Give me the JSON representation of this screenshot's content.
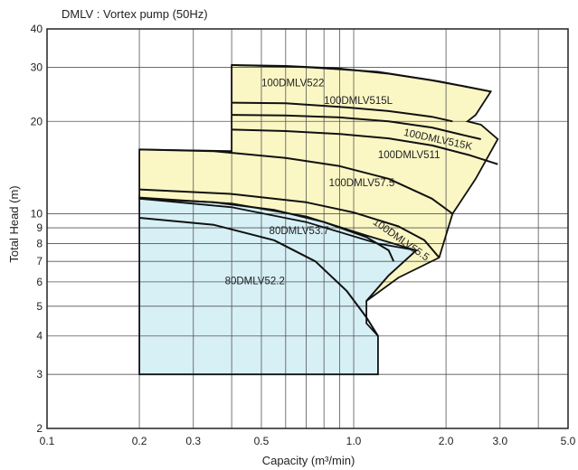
{
  "chart_data": {
    "type": "line",
    "title": "DMLV : Vortex pump (50Hz)",
    "xlabel": "Capacity (m³/min)",
    "ylabel": "Total Head (m)",
    "x_scale": "log",
    "y_scale": "log",
    "xlim": [
      0.1,
      5.0
    ],
    "ylim": [
      2,
      40
    ],
    "x_ticks": [
      {
        "value": 0.1,
        "label": "0.1"
      },
      {
        "value": 0.2,
        "label": "0.2"
      },
      {
        "value": 0.3,
        "label": "0.3"
      },
      {
        "value": 0.5,
        "label": "0.5"
      },
      {
        "value": 1.0,
        "label": "1.0"
      },
      {
        "value": 2.0,
        "label": "2.0"
      },
      {
        "value": 3.0,
        "label": "3.0"
      },
      {
        "value": 5.0,
        "label": "5.0"
      }
    ],
    "y_ticks": [
      {
        "value": 2,
        "label": "2"
      },
      {
        "value": 3,
        "label": "3"
      },
      {
        "value": 4,
        "label": "4"
      },
      {
        "value": 5,
        "label": "5"
      },
      {
        "value": 6,
        "label": "6"
      },
      {
        "value": 7,
        "label": "7"
      },
      {
        "value": 8,
        "label": "8"
      },
      {
        "value": 9,
        "label": "9"
      },
      {
        "value": 10,
        "label": "10"
      },
      {
        "value": 20,
        "label": "20"
      },
      {
        "value": 30,
        "label": "30"
      },
      {
        "value": 40,
        "label": "40"
      }
    ],
    "grid": true,
    "colors": {
      "zone_100": "#fbf7c4",
      "zone_80": "#d6f0f6",
      "curve": "#111111"
    },
    "zones": [
      {
        "group": "100",
        "color": "#fbf7c4",
        "polygon": [
          [
            0.4,
            30.5
          ],
          [
            0.7,
            30
          ],
          [
            1.2,
            29
          ],
          [
            1.9,
            27
          ],
          [
            2.8,
            25
          ],
          [
            2.5,
            21
          ],
          [
            2.35,
            20
          ],
          [
            2.6,
            19.5
          ],
          [
            2.95,
            17.5
          ],
          [
            2.5,
            13
          ],
          [
            2.1,
            10
          ],
          [
            1.9,
            7.2
          ],
          [
            1.4,
            6.2
          ],
          [
            1.1,
            5.2
          ],
          [
            1.3,
            6.3
          ],
          [
            1.6,
            7.6
          ],
          [
            1.2,
            8
          ],
          [
            0.7,
            9.4
          ],
          [
            0.4,
            10.5
          ],
          [
            0.2,
            11.2
          ],
          [
            0.2,
            16.2
          ],
          [
            0.4,
            16
          ],
          [
            0.4,
            30.5
          ]
        ]
      },
      {
        "group": "80",
        "color": "#d6f0f6",
        "polygon": [
          [
            0.2,
            11.3
          ],
          [
            0.4,
            10.8
          ],
          [
            0.7,
            9.8
          ],
          [
            1.1,
            8.5
          ],
          [
            1.6,
            7.6
          ],
          [
            1.3,
            6.3
          ],
          [
            1.1,
            5.2
          ],
          [
            1.1,
            4.4
          ],
          [
            1.2,
            4.0
          ],
          [
            1.2,
            3.0
          ],
          [
            0.2,
            3.0
          ],
          [
            0.2,
            11.3
          ]
        ]
      }
    ],
    "series": [
      {
        "name": "100DMLV522",
        "x": [
          0.4,
          0.6,
          0.9,
          1.3,
          1.8,
          2.3,
          2.8
        ],
        "y": [
          30.5,
          30.3,
          29.7,
          28.6,
          27.2,
          26.0,
          25.0
        ]
      },
      {
        "name": "100DMLV515L",
        "x": [
          0.4,
          0.6,
          0.9,
          1.3,
          1.8,
          2.1
        ],
        "y": [
          23.0,
          22.9,
          22.3,
          21.6,
          20.7,
          20.0
        ]
      },
      {
        "name": "100DMLV515K",
        "x": [
          0.4,
          0.6,
          0.9,
          1.3,
          1.8,
          2.3,
          2.6
        ],
        "y": [
          21.0,
          20.9,
          20.6,
          20.0,
          19.1,
          18.0,
          17.5
        ]
      },
      {
        "name": "100DMLV511",
        "x": [
          0.4,
          0.6,
          0.9,
          1.3,
          1.8,
          2.4,
          2.95
        ],
        "y": [
          18.8,
          18.6,
          18.2,
          17.6,
          16.7,
          15.5,
          14.5
        ]
      },
      {
        "name": "100DMLV57.5",
        "x": [
          0.2,
          0.35,
          0.6,
          0.9,
          1.3,
          1.8,
          2.1
        ],
        "y": [
          16.2,
          16.0,
          15.2,
          14.3,
          13.0,
          11.2,
          10.0
        ]
      },
      {
        "name": "100DMLV55.5",
        "x": [
          0.2,
          0.4,
          0.7,
          1.0,
          1.4,
          1.7,
          1.9
        ],
        "y": [
          12.0,
          11.6,
          10.9,
          10.1,
          9.1,
          8.2,
          7.2
        ]
      },
      {
        "name": "80DMLV53.7",
        "x": [
          0.2,
          0.35,
          0.55,
          0.8,
          1.1,
          1.3,
          1.35
        ],
        "y": [
          11.2,
          10.9,
          10.3,
          9.4,
          8.4,
          7.6,
          7.0
        ]
      },
      {
        "name": "80DMLV52.2",
        "x": [
          0.2,
          0.35,
          0.55,
          0.75,
          0.95,
          1.1,
          1.2
        ],
        "y": [
          9.7,
          9.2,
          8.2,
          7.0,
          5.6,
          4.6,
          4.0
        ]
      }
    ],
    "curve_labels": [
      {
        "text": "100DMLV522",
        "x": 0.5,
        "y": 26.0,
        "rotate": 0
      },
      {
        "text": "100DMLV515L",
        "x": 0.8,
        "y": 22.8,
        "rotate": 0
      },
      {
        "text": "100DMLV515K",
        "x": 1.45,
        "y": 18.0,
        "rotate": 12
      },
      {
        "text": "100DMLV511",
        "x": 1.2,
        "y": 15.2,
        "rotate": 0
      },
      {
        "text": "100DMLV57.5",
        "x": 0.83,
        "y": 12.3,
        "rotate": 0
      },
      {
        "text": "100DMLV55.5",
        "x": 1.15,
        "y": 9.3,
        "rotate": 35
      },
      {
        "text": "80DMLV53.7",
        "x": 0.53,
        "y": 8.6,
        "rotate": 0
      },
      {
        "text": "80DMLV52.2",
        "x": 0.38,
        "y": 5.9,
        "rotate": 0
      }
    ]
  }
}
